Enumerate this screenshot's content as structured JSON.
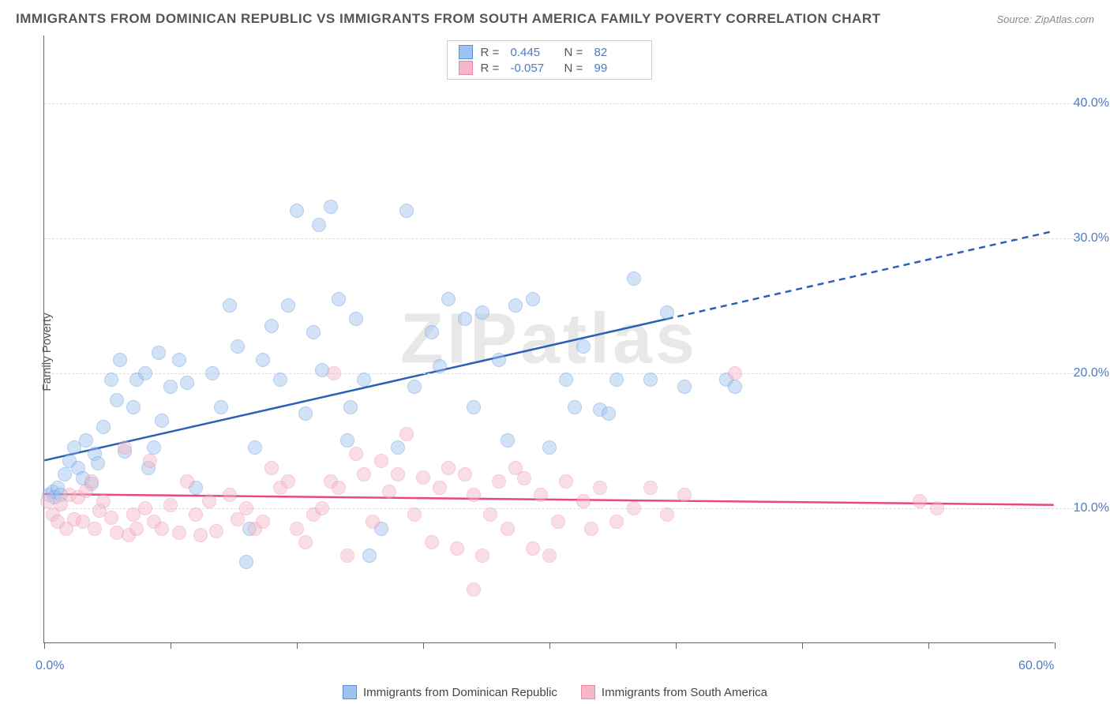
{
  "title": "IMMIGRANTS FROM DOMINICAN REPUBLIC VS IMMIGRANTS FROM SOUTH AMERICA FAMILY POVERTY CORRELATION CHART",
  "source": "Source: ZipAtlas.com",
  "watermark": "ZIPatlas",
  "y_axis_label": "Family Poverty",
  "chart": {
    "type": "scatter",
    "xlim": [
      0,
      60
    ],
    "ylim": [
      0,
      45
    ],
    "x_ticks": [
      0,
      7.5,
      15,
      22.5,
      30,
      37.5,
      45,
      52.5,
      60
    ],
    "x_tick_labels": {
      "0": "0.0%",
      "60": "60.0%"
    },
    "y_gridlines": [
      10,
      20,
      30,
      40
    ],
    "y_tick_labels": {
      "10": "10.0%",
      "20": "20.0%",
      "30": "30.0%",
      "40": "40.0%"
    },
    "grid_color": "#dddddd",
    "background_color": "#ffffff",
    "axis_color": "#666666",
    "tick_label_color": "#4a7bc8",
    "marker_radius": 9,
    "marker_opacity": 0.45,
    "series": [
      {
        "name": "Immigrants from Dominican Republic",
        "fill_color": "#9dc3f0",
        "stroke_color": "#5a8fd6",
        "line_color": "#2b5fb8",
        "r_value": "0.445",
        "n_value": "82",
        "trend": {
          "x1": 0,
          "y1": 13.5,
          "x2": 60,
          "y2": 30.5,
          "solid_to_x": 37
        },
        "points": [
          [
            0.3,
            11
          ],
          [
            0.5,
            11.2
          ],
          [
            0.6,
            10.8
          ],
          [
            0.8,
            11.5
          ],
          [
            1,
            11
          ],
          [
            1.2,
            12.5
          ],
          [
            1.5,
            13.5
          ],
          [
            1.8,
            14.5
          ],
          [
            2,
            13
          ],
          [
            2.3,
            12.2
          ],
          [
            2.5,
            15
          ],
          [
            2.8,
            11.8
          ],
          [
            3,
            14
          ],
          [
            3.2,
            13.3
          ],
          [
            3.5,
            16
          ],
          [
            4,
            19.5
          ],
          [
            4.3,
            18
          ],
          [
            4.5,
            21
          ],
          [
            4.8,
            14.2
          ],
          [
            5.3,
            17.5
          ],
          [
            5.5,
            19.5
          ],
          [
            6,
            20
          ],
          [
            6.2,
            13
          ],
          [
            6.5,
            14.5
          ],
          [
            6.8,
            21.5
          ],
          [
            7,
            16.5
          ],
          [
            7.5,
            19
          ],
          [
            8,
            21
          ],
          [
            8.5,
            19.3
          ],
          [
            9,
            11.5
          ],
          [
            10,
            20
          ],
          [
            10.5,
            17.5
          ],
          [
            11,
            25
          ],
          [
            11.5,
            22
          ],
          [
            12,
            6
          ],
          [
            12.2,
            8.5
          ],
          [
            12.5,
            14.5
          ],
          [
            13,
            21
          ],
          [
            13.5,
            23.5
          ],
          [
            14,
            19.5
          ],
          [
            14.5,
            25
          ],
          [
            15,
            32
          ],
          [
            15.5,
            17
          ],
          [
            16,
            23
          ],
          [
            16.3,
            31
          ],
          [
            16.5,
            20.2
          ],
          [
            17,
            32.3
          ],
          [
            17.5,
            25.5
          ],
          [
            18,
            15
          ],
          [
            18.2,
            17.5
          ],
          [
            18.5,
            24
          ],
          [
            19,
            19.5
          ],
          [
            19.3,
            6.5
          ],
          [
            20,
            8.5
          ],
          [
            21,
            14.5
          ],
          [
            21.5,
            32
          ],
          [
            22,
            19
          ],
          [
            23,
            23
          ],
          [
            23.5,
            20.5
          ],
          [
            24,
            25.5
          ],
          [
            25,
            24
          ],
          [
            25.5,
            17.5
          ],
          [
            26,
            24.5
          ],
          [
            27,
            21
          ],
          [
            27.5,
            15
          ],
          [
            28,
            25
          ],
          [
            29,
            25.5
          ],
          [
            30,
            14.5
          ],
          [
            31,
            19.5
          ],
          [
            31.5,
            17.5
          ],
          [
            32,
            22
          ],
          [
            33,
            17.3
          ],
          [
            33.5,
            17
          ],
          [
            34,
            19.5
          ],
          [
            35,
            27
          ],
          [
            36,
            19.5
          ],
          [
            37,
            24.5
          ],
          [
            38,
            19
          ],
          [
            40.5,
            19.5
          ],
          [
            41,
            19
          ]
        ]
      },
      {
        "name": "Immigrants from South America",
        "fill_color": "#f5b8c9",
        "stroke_color": "#e88aa5",
        "line_color": "#e8487a",
        "r_value": "-0.057",
        "n_value": "99",
        "trend": {
          "x1": 0,
          "y1": 11,
          "x2": 60,
          "y2": 10.2,
          "solid_to_x": 60
        },
        "points": [
          [
            0.2,
            10.5
          ],
          [
            0.5,
            9.5
          ],
          [
            0.8,
            9
          ],
          [
            1,
            10.3
          ],
          [
            1.3,
            8.5
          ],
          [
            1.5,
            11
          ],
          [
            1.8,
            9.2
          ],
          [
            2,
            10.8
          ],
          [
            2.3,
            9
          ],
          [
            2.5,
            11.3
          ],
          [
            2.8,
            12
          ],
          [
            3,
            8.5
          ],
          [
            3.3,
            9.8
          ],
          [
            3.5,
            10.5
          ],
          [
            4,
            9.3
          ],
          [
            4.3,
            8.2
          ],
          [
            4.8,
            14.5
          ],
          [
            5,
            8
          ],
          [
            5.3,
            9.5
          ],
          [
            5.5,
            8.5
          ],
          [
            6,
            10
          ],
          [
            6.3,
            13.5
          ],
          [
            6.5,
            9
          ],
          [
            7,
            8.5
          ],
          [
            7.5,
            10.2
          ],
          [
            8,
            8.2
          ],
          [
            8.5,
            12
          ],
          [
            9,
            9.5
          ],
          [
            9.3,
            8
          ],
          [
            9.8,
            10.5
          ],
          [
            10.2,
            8.3
          ],
          [
            11,
            11
          ],
          [
            11.5,
            9.2
          ],
          [
            12,
            10
          ],
          [
            12.5,
            8.5
          ],
          [
            13,
            9
          ],
          [
            13.5,
            13
          ],
          [
            14,
            11.5
          ],
          [
            14.5,
            12
          ],
          [
            15,
            8.5
          ],
          [
            15.5,
            7.5
          ],
          [
            16,
            9.5
          ],
          [
            16.5,
            10
          ],
          [
            17,
            12
          ],
          [
            17.2,
            20
          ],
          [
            17.5,
            11.5
          ],
          [
            18,
            6.5
          ],
          [
            18.5,
            14
          ],
          [
            19,
            12.5
          ],
          [
            19.5,
            9
          ],
          [
            20,
            13.5
          ],
          [
            20.5,
            11.2
          ],
          [
            21,
            12.5
          ],
          [
            21.5,
            15.5
          ],
          [
            22,
            9.5
          ],
          [
            22.5,
            12.3
          ],
          [
            23,
            7.5
          ],
          [
            23.5,
            11.5
          ],
          [
            24,
            13
          ],
          [
            24.5,
            7
          ],
          [
            25,
            12.5
          ],
          [
            25.5,
            11
          ],
          [
            26,
            6.5
          ],
          [
            26.5,
            9.5
          ],
          [
            27,
            12
          ],
          [
            27.5,
            8.5
          ],
          [
            28,
            13
          ],
          [
            28.5,
            12.2
          ],
          [
            29,
            7
          ],
          [
            29.5,
            11
          ],
          [
            30,
            6.5
          ],
          [
            30.5,
            9
          ],
          [
            31,
            12
          ],
          [
            32,
            10.5
          ],
          [
            32.5,
            8.5
          ],
          [
            33,
            11.5
          ],
          [
            34,
            9
          ],
          [
            35,
            10
          ],
          [
            36,
            11.5
          ],
          [
            37,
            9.5
          ],
          [
            38,
            11
          ],
          [
            25.5,
            4
          ],
          [
            41,
            20
          ],
          [
            52,
            10.5
          ],
          [
            53,
            10
          ]
        ]
      }
    ]
  },
  "legend_bottom": [
    "Immigrants from Dominican Republic",
    "Immigrants from South America"
  ]
}
